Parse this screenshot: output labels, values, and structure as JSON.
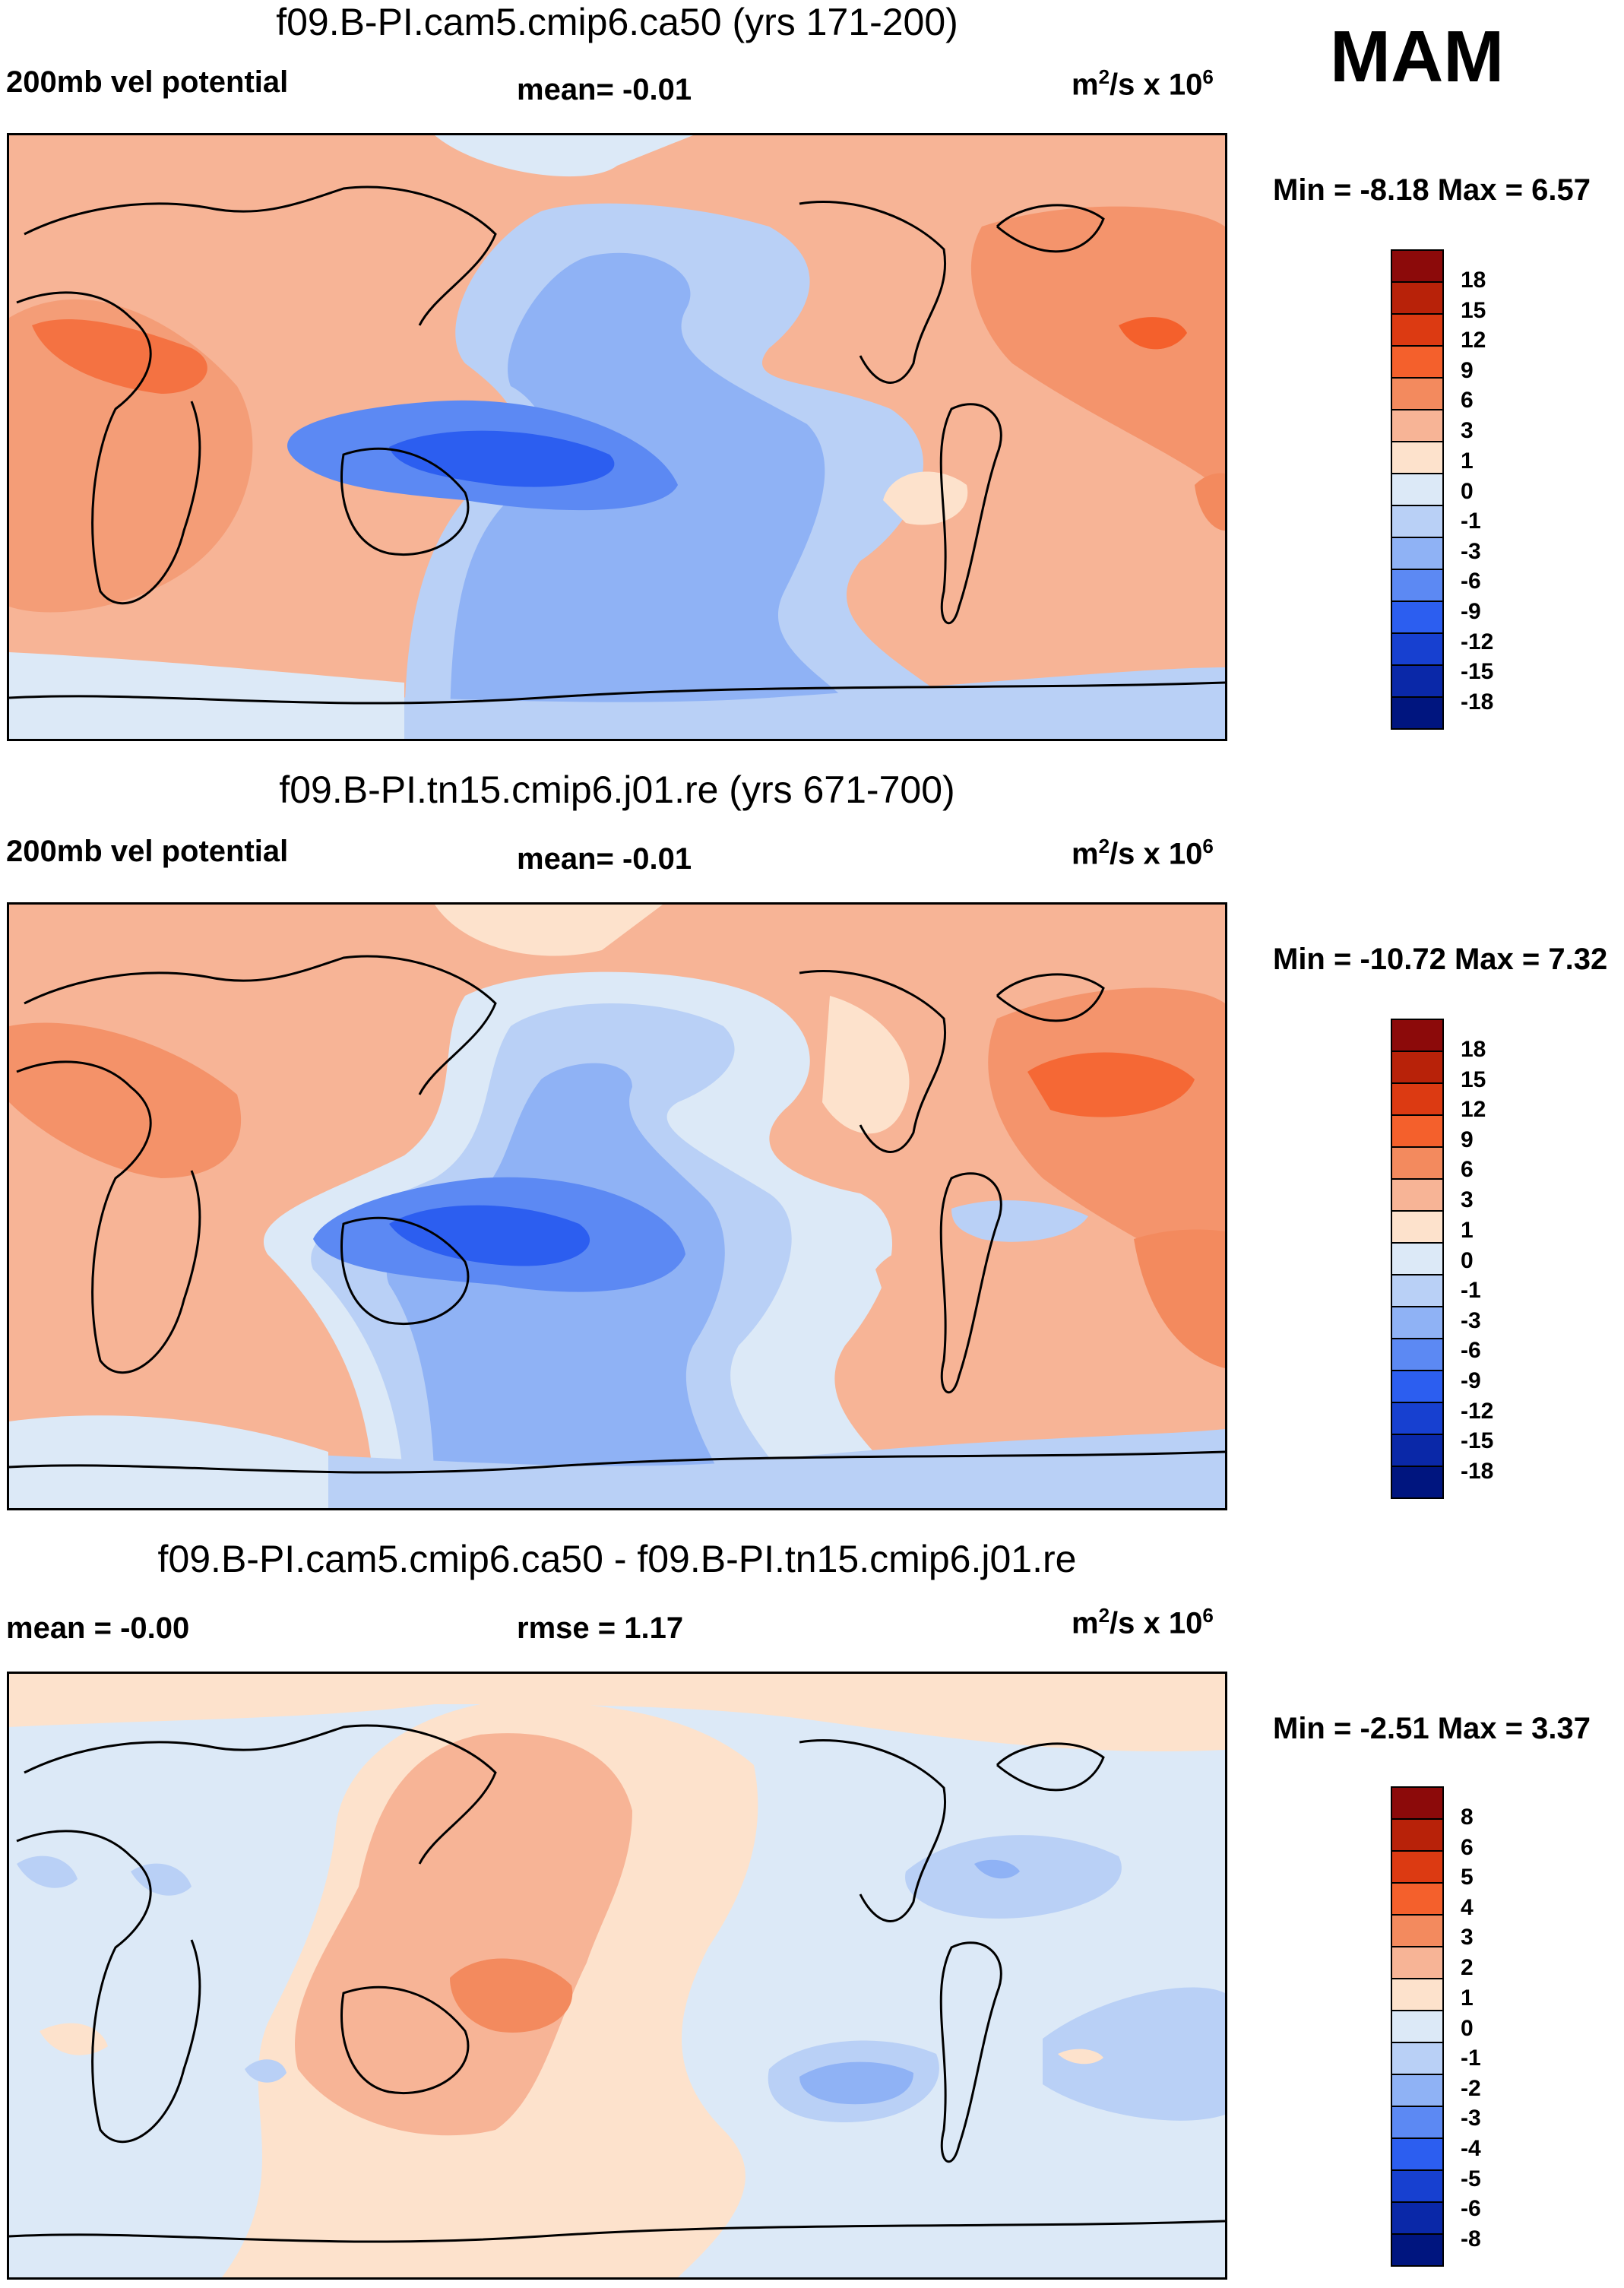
{
  "figure": {
    "season": "MAM",
    "units_main": "m",
    "units_sup1": "2",
    "units_mid": "/s x 10",
    "units_sup2": "6"
  },
  "panels": [
    {
      "title": "f09.B-PI.cam5.cmip6.ca50 (yrs 171-200)",
      "left_label": "200mb vel potential",
      "center_label": "mean=  -0.01",
      "minmax": "Min =  -8.18 Max =   6.57",
      "colorbar_labels": [
        "18",
        "15",
        "12",
        "9",
        "6",
        "3",
        "1",
        "0",
        "-1",
        "-3",
        "-6",
        "-9",
        "-12",
        "-15",
        "-18"
      ]
    },
    {
      "title": "f09.B-PI.tn15.cmip6.j01.re (yrs 671-700)",
      "left_label": "200mb vel potential",
      "center_label": "mean=  -0.01",
      "minmax": "Min = -10.72 Max =   7.32",
      "colorbar_labels": [
        "18",
        "15",
        "12",
        "9",
        "6",
        "3",
        "1",
        "0",
        "-1",
        "-3",
        "-6",
        "-9",
        "-12",
        "-15",
        "-18"
      ]
    },
    {
      "title": "f09.B-PI.cam5.cmip6.ca50 - f09.B-PI.tn15.cmip6.j01.re",
      "left_label": "mean =  -0.00",
      "center_label": "rmse =    1.17",
      "minmax": "Min =  -2.51 Max =   3.37",
      "colorbar_labels": [
        "8",
        "6",
        "5",
        "4",
        "3",
        "2",
        "1",
        "0",
        "-1",
        "-2",
        "-3",
        "-4",
        "-5",
        "-6",
        "-8"
      ]
    }
  ],
  "colors": {
    "colorbar": [
      "#8c0a0a",
      "#b82209",
      "#dc3a12",
      "#f4602c",
      "#f38a5e",
      "#f7b496",
      "#fde2cc",
      "#dce9f7",
      "#b9d0f6",
      "#8fb2f5",
      "#5c89f3",
      "#2c5ef0",
      "#1740d0",
      "#0a28a8",
      "#00157f"
    ],
    "map_land_line": "#000000"
  },
  "chart_data": [
    {
      "type": "heatmap",
      "title": "f09.B-PI.cam5.cmip6.ca50 (yrs 171-200)",
      "variable": "200mb vel potential",
      "season": "MAM",
      "units": "m^2/s x 10^6",
      "mean": -0.01,
      "min": -8.18,
      "max": 6.57,
      "contour_levels": [
        -18,
        -15,
        -12,
        -9,
        -6,
        -3,
        -1,
        0,
        1,
        3,
        6,
        9,
        12,
        15,
        18
      ]
    },
    {
      "type": "heatmap",
      "title": "f09.B-PI.tn15.cmip6.j01.re (yrs 671-700)",
      "variable": "200mb vel potential",
      "season": "MAM",
      "units": "m^2/s x 10^6",
      "mean": -0.01,
      "min": -10.72,
      "max": 7.32,
      "contour_levels": [
        -18,
        -15,
        -12,
        -9,
        -6,
        -3,
        -1,
        0,
        1,
        3,
        6,
        9,
        12,
        15,
        18
      ]
    },
    {
      "type": "heatmap",
      "title": "f09.B-PI.cam5.cmip6.ca50 - f09.B-PI.tn15.cmip6.j01.re",
      "units": "m^2/s x 10^6",
      "mean": -0.0,
      "rmse": 1.17,
      "min": -2.51,
      "max": 3.37,
      "contour_levels": [
        -8,
        -6,
        -5,
        -4,
        -3,
        -2,
        -1,
        0,
        1,
        2,
        3,
        4,
        5,
        6,
        8
      ]
    }
  ]
}
